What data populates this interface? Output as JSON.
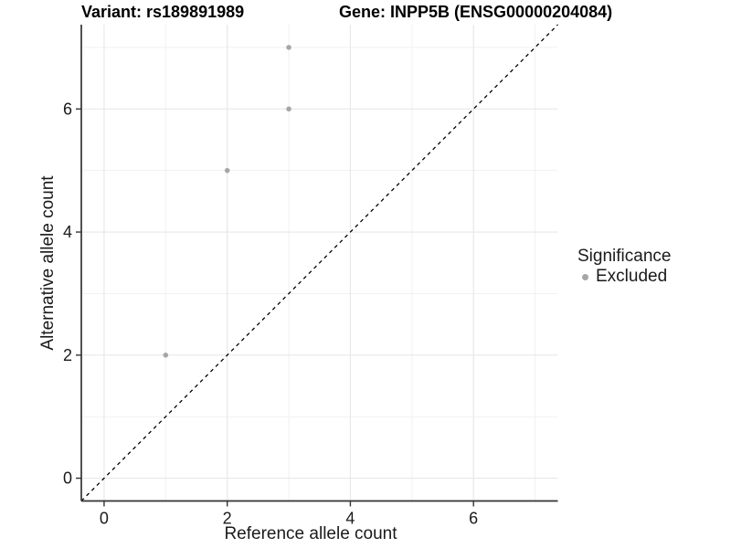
{
  "chart_data": {
    "type": "scatter",
    "title_left": "Variant: rs189891989",
    "title_right": "Gene: INPP5B (ENSG00000204084)",
    "xlabel": "Reference allele count",
    "ylabel": "Alternative allele count",
    "xlim": [
      -0.37,
      7.37
    ],
    "ylim": [
      -0.37,
      7.37
    ],
    "x_major_ticks": [
      0,
      2,
      4,
      6
    ],
    "y_major_ticks": [
      0,
      2,
      4,
      6
    ],
    "x_minor_ticks": [
      1,
      3,
      5,
      7
    ],
    "y_minor_ticks": [
      1,
      3,
      5,
      7
    ],
    "grid": true,
    "series": [
      {
        "name": "Excluded",
        "color": "#a6a6a6",
        "points": [
          {
            "x": 1,
            "y": 2
          },
          {
            "x": 2,
            "y": 5
          },
          {
            "x": 3,
            "y": 6
          },
          {
            "x": 3,
            "y": 7
          }
        ]
      }
    ],
    "reference_line": {
      "kind": "identity",
      "style": "dashed",
      "color": "#000000"
    },
    "legend": {
      "title": "Significance",
      "position": "right",
      "entries": [
        {
          "label": "Excluded",
          "color": "#a6a6a6"
        }
      ]
    },
    "colors": {
      "grid_major": "#e8e8e8",
      "grid_minor": "#f1f1f1",
      "axis_line": "#333333",
      "tick_text": "#1a1a1a"
    }
  }
}
